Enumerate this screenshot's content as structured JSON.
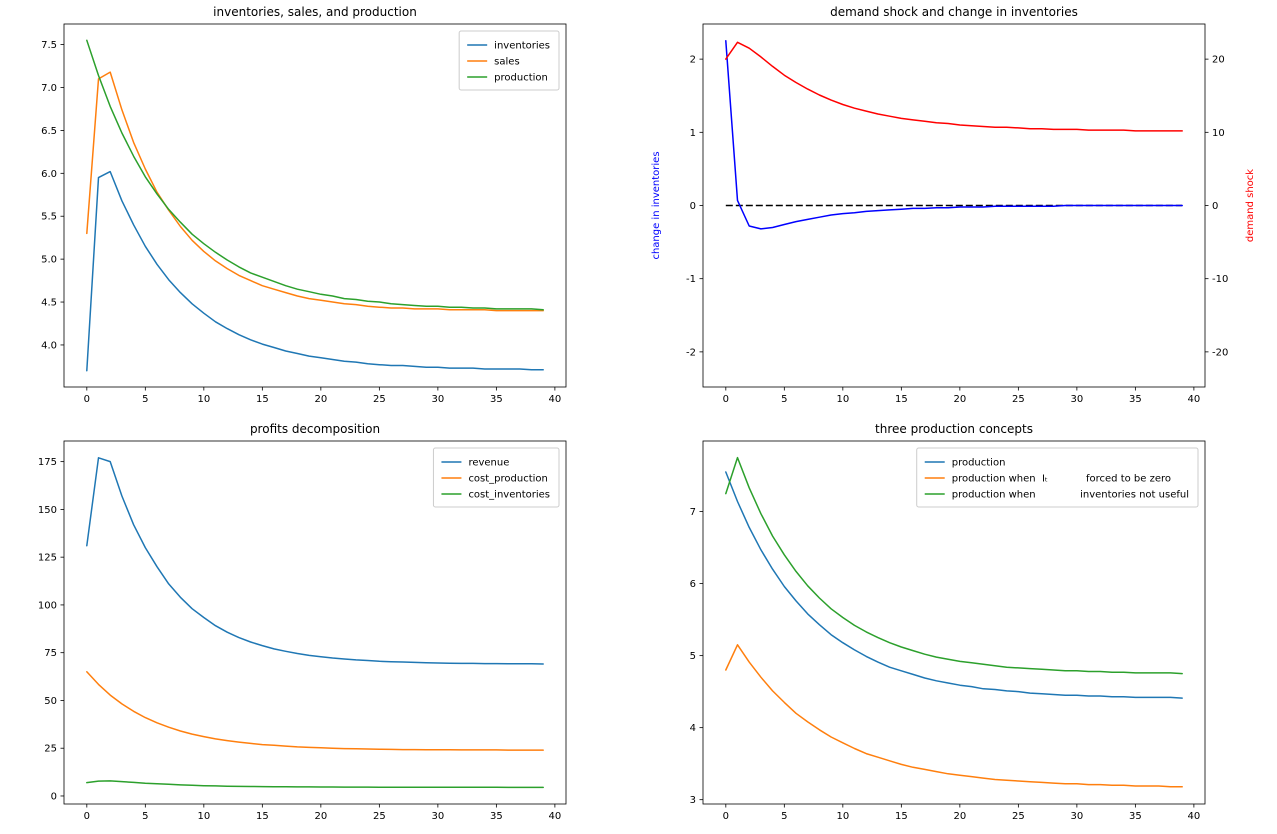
{
  "chart_data": [
    {
      "type": "line",
      "title": "inventories, sales, and production",
      "x": [
        0,
        1,
        2,
        3,
        4,
        5,
        6,
        7,
        8,
        9,
        10,
        11,
        12,
        13,
        14,
        15,
        16,
        17,
        18,
        19,
        20,
        21,
        22,
        23,
        24,
        25,
        26,
        27,
        28,
        29,
        30,
        31,
        32,
        33,
        34,
        35,
        36,
        37,
        38,
        39
      ],
      "xlim": [
        -1.95,
        40.95
      ],
      "xticks": [
        0,
        5,
        10,
        15,
        20,
        25,
        30,
        35,
        40
      ],
      "y_axis": {
        "lim": [
          3.51,
          7.74
        ],
        "ticks": [
          4.0,
          4.5,
          5.0,
          5.5,
          6.0,
          6.5,
          7.0,
          7.5
        ],
        "decimals": 1
      },
      "legend": true,
      "series": [
        {
          "name": "inventories",
          "color": "#1f77b4",
          "values": [
            3.7,
            5.95,
            6.02,
            5.68,
            5.4,
            5.15,
            4.94,
            4.76,
            4.61,
            4.48,
            4.37,
            4.27,
            4.19,
            4.12,
            4.06,
            4.01,
            3.97,
            3.93,
            3.9,
            3.87,
            3.85,
            3.83,
            3.81,
            3.8,
            3.78,
            3.77,
            3.76,
            3.76,
            3.75,
            3.74,
            3.74,
            3.73,
            3.73,
            3.73,
            3.72,
            3.72,
            3.72,
            3.72,
            3.71,
            3.71
          ]
        },
        {
          "name": "sales",
          "color": "#ff7f0e",
          "values": [
            5.3,
            7.1,
            7.18,
            6.74,
            6.36,
            6.05,
            5.78,
            5.57,
            5.38,
            5.22,
            5.09,
            4.98,
            4.89,
            4.81,
            4.75,
            4.69,
            4.65,
            4.61,
            4.57,
            4.54,
            4.52,
            4.5,
            4.48,
            4.47,
            4.45,
            4.44,
            4.43,
            4.43,
            4.42,
            4.42,
            4.42,
            4.41,
            4.41,
            4.41,
            4.41,
            4.4,
            4.4,
            4.4,
            4.4,
            4.4
          ]
        },
        {
          "name": "production",
          "color": "#2ca02c",
          "values": [
            7.55,
            7.14,
            6.78,
            6.47,
            6.2,
            5.96,
            5.76,
            5.58,
            5.43,
            5.29,
            5.18,
            5.08,
            4.99,
            4.91,
            4.84,
            4.79,
            4.74,
            4.69,
            4.65,
            4.62,
            4.59,
            4.57,
            4.54,
            4.53,
            4.51,
            4.5,
            4.48,
            4.47,
            4.46,
            4.45,
            4.45,
            4.44,
            4.44,
            4.43,
            4.43,
            4.42,
            4.42,
            4.42,
            4.42,
            4.41
          ]
        }
      ]
    },
    {
      "type": "line",
      "title": "demand shock and change in inventories",
      "x": [
        0,
        1,
        2,
        3,
        4,
        5,
        6,
        7,
        8,
        9,
        10,
        11,
        12,
        13,
        14,
        15,
        16,
        17,
        18,
        19,
        20,
        21,
        22,
        23,
        24,
        25,
        26,
        27,
        28,
        29,
        30,
        31,
        32,
        33,
        34,
        35,
        36,
        37,
        38,
        39
      ],
      "xlim": [
        -1.95,
        40.95
      ],
      "xticks": [
        0,
        5,
        10,
        15,
        20,
        25,
        30,
        35,
        40
      ],
      "y_axis": {
        "lim": [
          -2.48,
          2.48
        ],
        "ticks": [
          -2,
          -1,
          0,
          1,
          2
        ],
        "decimals": 0,
        "label": "change in inventories",
        "label_color": "#0000ff"
      },
      "right_axis": {
        "lim": [
          -24.8,
          24.8
        ],
        "ticks": [
          -20,
          -10,
          0,
          10,
          20
        ],
        "decimals": 0,
        "label": "demand shock",
        "label_color": "#ff0000"
      },
      "hline": {
        "y": 0,
        "color": "#000000",
        "style": "dashed"
      },
      "legend": false,
      "series": [
        {
          "name": "change in inventories",
          "color": "#0000ff",
          "axis": "left",
          "values": [
            2.25,
            0.07,
            -0.28,
            -0.32,
            -0.3,
            -0.26,
            -0.22,
            -0.19,
            -0.16,
            -0.13,
            -0.11,
            -0.1,
            -0.08,
            -0.07,
            -0.06,
            -0.05,
            -0.04,
            -0.04,
            -0.03,
            -0.03,
            -0.02,
            -0.02,
            -0.02,
            -0.01,
            -0.01,
            -0.01,
            -0.01,
            -0.01,
            -0.01,
            0.0,
            0.0,
            0.0,
            0.0,
            0.0,
            0.0,
            0.0,
            0.0,
            0.0,
            0.0,
            0.0
          ]
        },
        {
          "name": "demand shock",
          "color": "#ff0000",
          "axis": "right",
          "values": [
            20.0,
            22.3,
            21.5,
            20.3,
            19.0,
            17.8,
            16.8,
            15.9,
            15.1,
            14.4,
            13.8,
            13.3,
            12.9,
            12.5,
            12.2,
            11.9,
            11.7,
            11.5,
            11.3,
            11.2,
            11.0,
            10.9,
            10.8,
            10.7,
            10.7,
            10.6,
            10.5,
            10.5,
            10.4,
            10.4,
            10.4,
            10.3,
            10.3,
            10.3,
            10.3,
            10.2,
            10.2,
            10.2,
            10.2,
            10.2
          ]
        }
      ]
    },
    {
      "type": "line",
      "title": "profits decomposition",
      "x": [
        0,
        1,
        2,
        3,
        4,
        5,
        6,
        7,
        8,
        9,
        10,
        11,
        12,
        13,
        14,
        15,
        16,
        17,
        18,
        19,
        20,
        21,
        22,
        23,
        24,
        25,
        26,
        27,
        28,
        29,
        30,
        31,
        32,
        33,
        34,
        35,
        36,
        37,
        38,
        39
      ],
      "xlim": [
        -1.95,
        40.95
      ],
      "xticks": [
        0,
        5,
        10,
        15,
        20,
        25,
        30,
        35,
        40
      ],
      "y_axis": {
        "lim": [
          -4.2,
          185.8
        ],
        "ticks": [
          0,
          25,
          50,
          75,
          100,
          125,
          150,
          175
        ],
        "decimals": 0
      },
      "legend": true,
      "series": [
        {
          "name": "revenue",
          "color": "#1f77b4",
          "values": [
            131,
            177,
            175,
            157,
            142,
            130,
            120,
            111,
            104,
            98,
            93.4,
            89.1,
            85.7,
            82.9,
            80.6,
            78.7,
            77.0,
            75.7,
            74.6,
            73.6,
            72.9,
            72.2,
            71.7,
            71.2,
            70.9,
            70.5,
            70.3,
            70.1,
            69.9,
            69.7,
            69.6,
            69.5,
            69.4,
            69.4,
            69.3,
            69.3,
            69.2,
            69.2,
            69.2,
            69.1
          ]
        },
        {
          "name": "cost_production",
          "color": "#ff7f0e",
          "values": [
            65.0,
            58.4,
            52.8,
            48.2,
            44.3,
            41.0,
            38.3,
            36.0,
            34.0,
            32.4,
            31.1,
            29.9,
            29.0,
            28.2,
            27.5,
            26.9,
            26.5,
            26.1,
            25.7,
            25.4,
            25.2,
            25.0,
            24.8,
            24.7,
            24.6,
            24.5,
            24.4,
            24.3,
            24.3,
            24.2,
            24.2,
            24.2,
            24.1,
            24.1,
            24.1,
            24.1,
            24.0,
            24.0,
            24.0,
            24.0
          ]
        },
        {
          "name": "cost_inventories",
          "color": "#2ca02c",
          "values": [
            7.0,
            7.8,
            7.9,
            7.5,
            7.1,
            6.7,
            6.4,
            6.1,
            5.8,
            5.6,
            5.4,
            5.3,
            5.1,
            5.0,
            4.95,
            4.9,
            4.85,
            4.8,
            4.77,
            4.74,
            4.71,
            4.68,
            4.66,
            4.64,
            4.62,
            4.6,
            4.59,
            4.58,
            4.57,
            4.56,
            4.55,
            4.54,
            4.53,
            4.53,
            4.52,
            4.52,
            4.51,
            4.51,
            4.51,
            4.5
          ]
        }
      ]
    },
    {
      "type": "line",
      "title": "three production concepts",
      "x": [
        0,
        1,
        2,
        3,
        4,
        5,
        6,
        7,
        8,
        9,
        10,
        11,
        12,
        13,
        14,
        15,
        16,
        17,
        18,
        19,
        20,
        21,
        22,
        23,
        24,
        25,
        26,
        27,
        28,
        29,
        30,
        31,
        32,
        33,
        34,
        35,
        36,
        37,
        38,
        39
      ],
      "xlim": [
        -1.95,
        40.95
      ],
      "xticks": [
        0,
        5,
        10,
        15,
        20,
        25,
        30,
        35,
        40
      ],
      "y_axis": {
        "lim": [
          2.94,
          7.98
        ],
        "ticks": [
          3,
          4,
          5,
          6,
          7
        ],
        "decimals": 0
      },
      "legend": true,
      "series": [
        {
          "name": "production",
          "color": "#1f77b4",
          "values": [
            7.55,
            7.14,
            6.78,
            6.47,
            6.2,
            5.96,
            5.76,
            5.58,
            5.43,
            5.29,
            5.18,
            5.08,
            4.99,
            4.91,
            4.84,
            4.79,
            4.74,
            4.69,
            4.65,
            4.62,
            4.59,
            4.57,
            4.54,
            4.53,
            4.51,
            4.5,
            4.48,
            4.47,
            4.46,
            4.45,
            4.45,
            4.44,
            4.44,
            4.43,
            4.43,
            4.42,
            4.42,
            4.42,
            4.42,
            4.41
          ]
        },
        {
          "name": "production when  Iₜ            forced to be zero",
          "color": "#ff7f0e",
          "values": [
            4.8,
            5.15,
            4.91,
            4.7,
            4.51,
            4.35,
            4.2,
            4.08,
            3.97,
            3.87,
            3.79,
            3.71,
            3.64,
            3.59,
            3.54,
            3.49,
            3.45,
            3.42,
            3.39,
            3.36,
            3.34,
            3.32,
            3.3,
            3.28,
            3.27,
            3.26,
            3.25,
            3.24,
            3.23,
            3.22,
            3.22,
            3.21,
            3.21,
            3.2,
            3.2,
            3.19,
            3.19,
            3.19,
            3.18,
            3.18
          ]
        },
        {
          "name": "production when              inventories not useful",
          "color": "#2ca02c",
          "values": [
            7.25,
            7.75,
            7.33,
            6.97,
            6.66,
            6.4,
            6.17,
            5.97,
            5.8,
            5.65,
            5.53,
            5.42,
            5.33,
            5.25,
            5.18,
            5.12,
            5.07,
            5.02,
            4.98,
            4.95,
            4.92,
            4.9,
            4.88,
            4.86,
            4.84,
            4.83,
            4.82,
            4.81,
            4.8,
            4.79,
            4.79,
            4.78,
            4.78,
            4.77,
            4.77,
            4.76,
            4.76,
            4.76,
            4.76,
            4.75
          ]
        }
      ]
    }
  ]
}
